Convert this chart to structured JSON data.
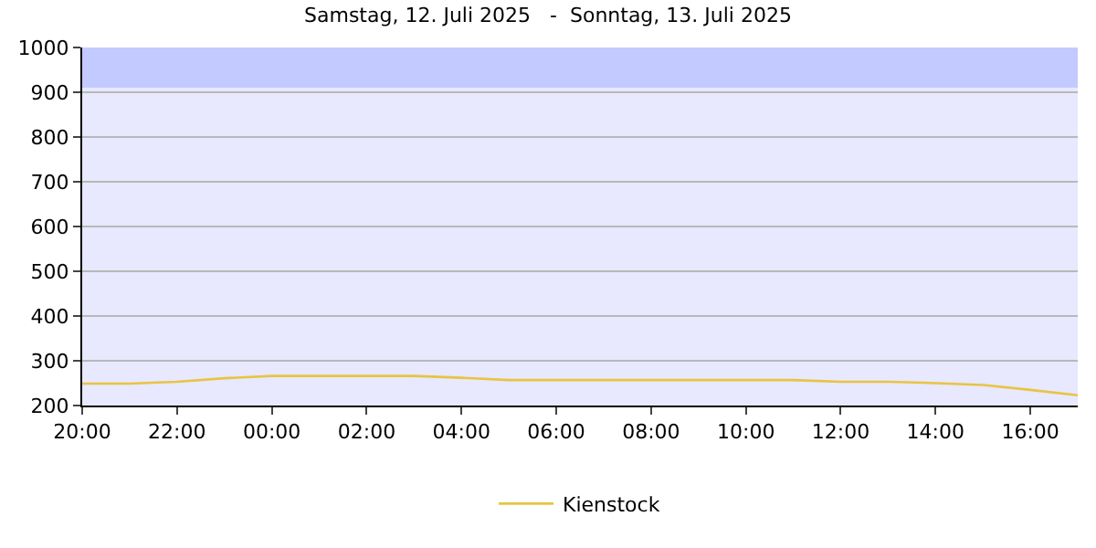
{
  "chart_data": {
    "type": "line",
    "title": "Samstag, 12. Juli 2025   -  Sonntag, 13. Juli 2025",
    "x": [
      "2025-07-12T20:00",
      "2025-07-12T21:00",
      "2025-07-12T22:00",
      "2025-07-12T23:00",
      "2025-07-13T00:00",
      "2025-07-13T01:00",
      "2025-07-13T02:00",
      "2025-07-13T03:00",
      "2025-07-13T04:00",
      "2025-07-13T05:00",
      "2025-07-13T06:00",
      "2025-07-13T07:00",
      "2025-07-13T08:00",
      "2025-07-13T09:00",
      "2025-07-13T10:00",
      "2025-07-13T11:00",
      "2025-07-13T12:00",
      "2025-07-13T13:00",
      "2025-07-13T14:00",
      "2025-07-13T15:00",
      "2025-07-13T16:00",
      "2025-07-13T17:00"
    ],
    "series": [
      {
        "name": "Kienstock",
        "color": "#e8c441",
        "values": [
          249,
          249,
          253,
          261,
          266,
          266,
          266,
          266,
          262,
          257,
          257,
          257,
          257,
          257,
          257,
          257,
          253,
          253,
          250,
          246,
          235,
          223
        ]
      }
    ],
    "xlim": [
      "2025-07-12T20:00",
      "2025-07-13T17:00"
    ],
    "xticks": [
      {
        "value": "2025-07-12T20:00",
        "label": "20:00"
      },
      {
        "value": "2025-07-12T22:00",
        "label": "22:00"
      },
      {
        "value": "2025-07-13T00:00",
        "label": "00:00"
      },
      {
        "value": "2025-07-13T02:00",
        "label": "02:00"
      },
      {
        "value": "2025-07-13T04:00",
        "label": "04:00"
      },
      {
        "value": "2025-07-13T06:00",
        "label": "06:00"
      },
      {
        "value": "2025-07-13T08:00",
        "label": "08:00"
      },
      {
        "value": "2025-07-13T10:00",
        "label": "10:00"
      },
      {
        "value": "2025-07-13T12:00",
        "label": "12:00"
      },
      {
        "value": "2025-07-13T14:00",
        "label": "14:00"
      },
      {
        "value": "2025-07-13T16:00",
        "label": "16:00"
      }
    ],
    "ylim": [
      200,
      1000
    ],
    "yticks": [
      200,
      300,
      400,
      500,
      600,
      700,
      800,
      900,
      1000
    ],
    "bands": [
      {
        "axis": "y",
        "from": 910,
        "to": 1000,
        "color": "#c3caff"
      }
    ],
    "grid": "y",
    "legend": "bottom",
    "marker": "none",
    "line_style": "solid"
  }
}
